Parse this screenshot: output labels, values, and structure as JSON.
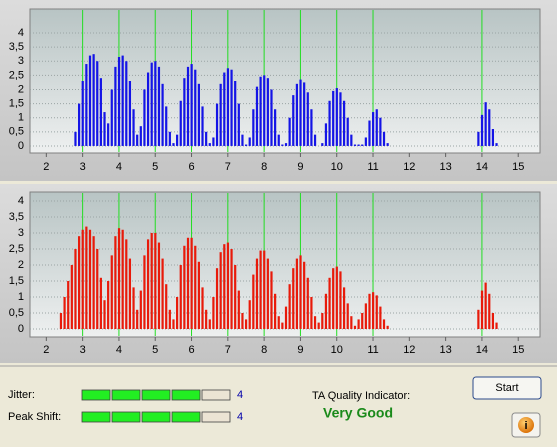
{
  "chart_data": [
    {
      "type": "bar",
      "color": "#1414e6",
      "x": [
        2.4,
        2.5,
        2.6,
        2.7,
        2.8,
        2.9,
        3.0,
        3.1,
        3.2,
        3.3,
        3.4,
        3.5,
        3.6,
        3.7,
        3.8,
        3.9,
        4.0,
        4.1,
        4.2,
        4.3,
        4.4,
        4.5,
        4.6,
        4.7,
        4.8,
        4.9,
        5.0,
        5.1,
        5.2,
        5.3,
        5.4,
        5.5,
        5.6,
        5.7,
        5.8,
        5.9,
        6.0,
        6.1,
        6.2,
        6.3,
        6.4,
        6.5,
        6.6,
        6.7,
        6.8,
        6.9,
        7.0,
        7.1,
        7.2,
        7.3,
        7.4,
        7.5,
        7.6,
        7.7,
        7.8,
        7.9,
        8.0,
        8.1,
        8.2,
        8.3,
        8.4,
        8.5,
        8.6,
        8.7,
        8.8,
        8.9,
        9.0,
        9.1,
        9.2,
        9.3,
        9.4,
        9.5,
        9.6,
        9.7,
        9.8,
        9.9,
        10.0,
        10.1,
        10.2,
        10.3,
        10.4,
        10.5,
        10.6,
        10.7,
        10.8,
        10.9,
        11.0,
        11.1,
        11.2,
        11.3,
        11.4,
        11.5,
        11.6,
        11.7,
        11.8,
        11.9,
        12.0,
        12.1,
        12.2,
        12.3,
        12.4,
        12.5,
        12.6,
        12.7,
        12.8,
        12.9,
        13.0,
        13.1,
        13.2,
        13.3,
        13.4,
        13.5,
        13.6,
        13.7,
        13.8,
        13.9,
        14.0,
        14.1,
        14.2,
        14.3,
        14.4,
        14.5
      ],
      "values": [
        0,
        0,
        0,
        0,
        0.5,
        1.5,
        2.3,
        2.9,
        3.2,
        3.25,
        3.0,
        2.4,
        1.2,
        0.8,
        2.0,
        2.8,
        3.15,
        3.2,
        3.0,
        2.3,
        1.3,
        0.4,
        0.7,
        2.0,
        2.6,
        2.95,
        3.0,
        2.8,
        2.2,
        1.4,
        0.5,
        0.1,
        0.4,
        1.6,
        2.4,
        2.8,
        2.9,
        2.7,
        2.2,
        1.4,
        0.5,
        0.1,
        0.3,
        1.5,
        2.2,
        2.6,
        2.75,
        2.7,
        2.3,
        1.5,
        0.4,
        0.05,
        0.3,
        1.3,
        2.1,
        2.45,
        2.5,
        2.4,
        2.0,
        1.3,
        0.4,
        0.05,
        0.1,
        1.0,
        1.8,
        2.2,
        2.35,
        2.25,
        1.9,
        1.3,
        0.4,
        0,
        0.1,
        0.8,
        1.6,
        1.95,
        2.05,
        1.9,
        1.6,
        1.0,
        0.4,
        0.05,
        0.05,
        0.05,
        0.3,
        0.9,
        1.2,
        1.3,
        1.0,
        0.5,
        0.1,
        0,
        0,
        0,
        0,
        0,
        0,
        0,
        0,
        0,
        0,
        0,
        0,
        0,
        0,
        0,
        0,
        0,
        0,
        0,
        0,
        0,
        0,
        0,
        0,
        0.5,
        1.1,
        1.55,
        1.3,
        0.6,
        0.1,
        0
      ],
      "xlim": [
        1.55,
        15.6
      ],
      "ylim": [
        -0.25,
        4.85
      ],
      "xticks": [
        2,
        3,
        4,
        5,
        6,
        7,
        8,
        9,
        10,
        11,
        12,
        13,
        14,
        15
      ],
      "yticks": [
        0,
        {
          "value": 0.5,
          "label": "0,5"
        },
        1,
        {
          "value": 1.5,
          "label": "1,5"
        },
        2,
        {
          "value": 2.5,
          "label": "2,5"
        },
        3,
        {
          "value": 3.5,
          "label": "3,5"
        },
        4
      ],
      "markers": [
        3,
        4,
        5,
        6,
        7,
        8,
        9,
        10,
        11,
        14
      ],
      "marker_color": "#22dd22",
      "grid": true
    },
    {
      "type": "bar",
      "color": "#e81a0a",
      "x": [
        2.4,
        2.5,
        2.6,
        2.7,
        2.8,
        2.9,
        3.0,
        3.1,
        3.2,
        3.3,
        3.4,
        3.5,
        3.6,
        3.7,
        3.8,
        3.9,
        4.0,
        4.1,
        4.2,
        4.3,
        4.4,
        4.5,
        4.6,
        4.7,
        4.8,
        4.9,
        5.0,
        5.1,
        5.2,
        5.3,
        5.4,
        5.5,
        5.6,
        5.7,
        5.8,
        5.9,
        6.0,
        6.1,
        6.2,
        6.3,
        6.4,
        6.5,
        6.6,
        6.7,
        6.8,
        6.9,
        7.0,
        7.1,
        7.2,
        7.3,
        7.4,
        7.5,
        7.6,
        7.7,
        7.8,
        7.9,
        8.0,
        8.1,
        8.2,
        8.3,
        8.4,
        8.5,
        8.6,
        8.7,
        8.8,
        8.9,
        9.0,
        9.1,
        9.2,
        9.3,
        9.4,
        9.5,
        9.6,
        9.7,
        9.8,
        9.9,
        10.0,
        10.1,
        10.2,
        10.3,
        10.4,
        10.5,
        10.6,
        10.7,
        10.8,
        10.9,
        11.0,
        11.1,
        11.2,
        11.3,
        11.4,
        11.5,
        11.6,
        11.7,
        11.8,
        11.9,
        12.0,
        12.1,
        12.2,
        12.3,
        12.4,
        12.5,
        12.6,
        12.7,
        12.8,
        12.9,
        13.0,
        13.1,
        13.2,
        13.3,
        13.4,
        13.5,
        13.6,
        13.7,
        13.8,
        13.9,
        14.0,
        14.1,
        14.2,
        14.3,
        14.4,
        14.5
      ],
      "values": [
        0.5,
        1.0,
        1.5,
        2.0,
        2.5,
        2.9,
        3.1,
        3.2,
        3.1,
        2.9,
        2.5,
        1.6,
        0.9,
        1.5,
        2.3,
        2.9,
        3.15,
        3.1,
        2.8,
        2.2,
        1.3,
        0.6,
        1.2,
        2.3,
        2.8,
        3.0,
        3.0,
        2.7,
        2.2,
        1.4,
        0.6,
        0.3,
        1.0,
        2.0,
        2.6,
        2.85,
        2.85,
        2.6,
        2.1,
        1.3,
        0.6,
        0.3,
        1.0,
        1.9,
        2.4,
        2.65,
        2.7,
        2.5,
        2.0,
        1.2,
        0.5,
        0.3,
        0.9,
        1.7,
        2.2,
        2.45,
        2.45,
        2.2,
        1.8,
        1.1,
        0.4,
        0.2,
        0.7,
        1.4,
        1.9,
        2.2,
        2.3,
        2.1,
        1.6,
        1.0,
        0.4,
        0.2,
        0.5,
        1.1,
        1.6,
        1.9,
        1.95,
        1.8,
        1.3,
        0.8,
        0.4,
        0.1,
        0.3,
        0.5,
        0.8,
        1.1,
        1.15,
        1.05,
        0.7,
        0.3,
        0.1,
        0,
        0,
        0,
        0,
        0,
        0,
        0,
        0,
        0,
        0,
        0,
        0,
        0,
        0,
        0,
        0,
        0,
        0,
        0,
        0,
        0,
        0,
        0,
        0,
        0.6,
        1.2,
        1.45,
        1.1,
        0.5,
        0.2,
        0
      ],
      "xlim": [
        1.55,
        15.6
      ],
      "ylim": [
        -0.25,
        4.28
      ],
      "xticks": [
        2,
        3,
        4,
        5,
        6,
        7,
        8,
        9,
        10,
        11,
        12,
        13,
        14,
        15
      ],
      "yticks": [
        0,
        {
          "value": 0.5,
          "label": "0,5"
        },
        1,
        {
          "value": 1.5,
          "label": "1,5"
        },
        2,
        {
          "value": 2.5,
          "label": "2,5"
        },
        3,
        {
          "value": 3.5,
          "label": "3,5"
        },
        4
      ],
      "markers": [
        3,
        4,
        5,
        6,
        7,
        8,
        9,
        10,
        11,
        14
      ],
      "marker_color": "#22dd22",
      "grid": true
    }
  ],
  "jitter": {
    "label": "Jitter:",
    "value": 4,
    "segments": 5
  },
  "peak_shift": {
    "label": "Peak Shift:",
    "value": 4,
    "segments": 5
  },
  "quality": {
    "label": "TA Quality Indicator:",
    "value": "Very Good"
  },
  "start_button": "Start",
  "info_button": "i"
}
